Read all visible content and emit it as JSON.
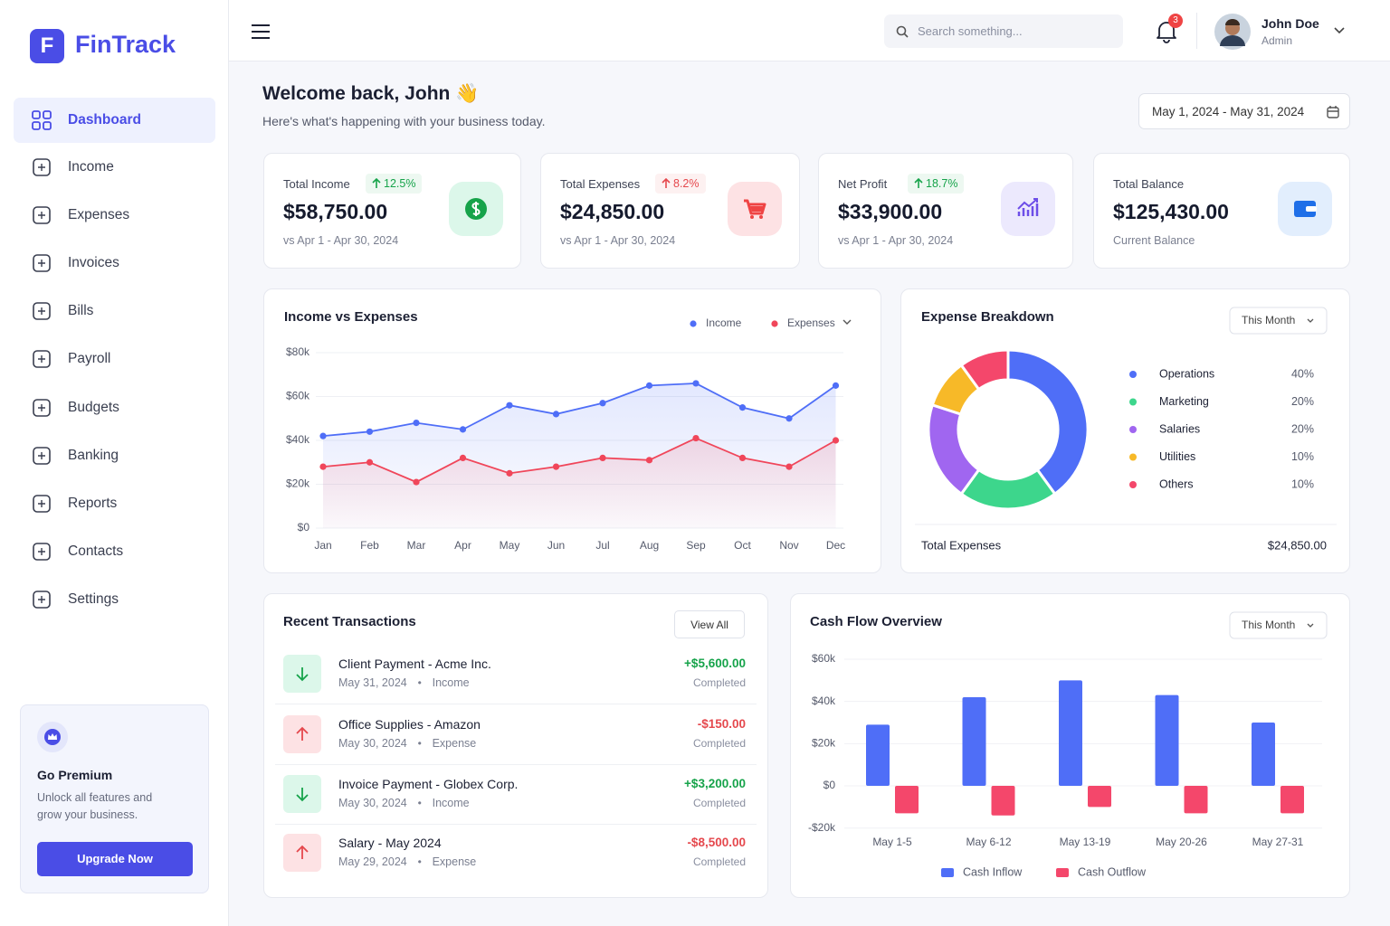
{
  "brand": {
    "logo": "F",
    "name": "FinTrack"
  },
  "nav": [
    "Dashboard",
    "Income",
    "Expenses",
    "Invoices",
    "Bills",
    "Payroll",
    "Budgets",
    "Banking",
    "Reports",
    "Contacts",
    "Settings"
  ],
  "premium": {
    "title": "Go Premium",
    "text": "Unlock all features and grow your business.",
    "button": "Upgrade Now"
  },
  "header": {
    "search_placeholder": "Search something...",
    "notifications": 3,
    "user_name": "John Doe",
    "user_role": "Admin"
  },
  "welcome": {
    "title": "Welcome back, John 👋",
    "subtitle": "Here's what's happening with your business today.",
    "date_range": "May 1, 2024 - May 31, 2024"
  },
  "stats": [
    {
      "label": "Total Income",
      "change": "12.5%",
      "color": "#16a34a",
      "value": "$58,750.00",
      "note": "vs Apr 1 - Apr 30, 2024"
    },
    {
      "label": "Total Expenses",
      "change": "8.2%",
      "color": "#e5484d",
      "value": "$24,850.00",
      "note": "vs Apr 1 - Apr 30, 2024"
    },
    {
      "label": "Net Profit",
      "change": "18.7%",
      "color": "#16a34a",
      "value": "$33,900.00",
      "note": "vs Apr 1 - Apr 30, 2024"
    },
    {
      "label": "Total Balance",
      "value": "$125,430.00",
      "note": "Current Balance"
    }
  ],
  "chart_data": [
    {
      "type": "line",
      "title": "Income vs Expenses",
      "categories": [
        "Jan",
        "Feb",
        "Mar",
        "Apr",
        "May",
        "Jun",
        "Jul",
        "Aug",
        "Sep",
        "Oct",
        "Nov",
        "Dec"
      ],
      "series": [
        {
          "name": "Income",
          "color": "#4f6ef7",
          "values": [
            42000,
            44000,
            48000,
            45000,
            56000,
            52000,
            57000,
            65000,
            66000,
            55000,
            50000,
            65000
          ]
        },
        {
          "name": "Expenses",
          "color": "#f0465a",
          "values": [
            28000,
            30000,
            21000,
            32000,
            25000,
            28000,
            32000,
            31000,
            41000,
            32000,
            28000,
            40000
          ]
        }
      ],
      "ylim": [
        0,
        80000
      ],
      "yticks": [
        {
          "value": 0,
          "label": "$0"
        },
        {
          "value": 20000,
          "label": "$20k"
        },
        {
          "value": 40000,
          "label": "$40k"
        },
        {
          "value": 60000,
          "label": "$60k"
        },
        {
          "value": 80000,
          "label": "$80k"
        }
      ],
      "grid": true,
      "legend": "top-right"
    },
    {
      "type": "pie",
      "title": "Expense Breakdown",
      "period": "This Month",
      "categories": [
        "Operations",
        "Marketing",
        "Salaries",
        "Utilities",
        "Others"
      ],
      "values": [
        40,
        20,
        20,
        10,
        10
      ],
      "value_labels": [
        "40%",
        "20%",
        "20%",
        "10%",
        "10%"
      ],
      "colors": [
        "#4f6ef7",
        "#3dd68c",
        "#a066f0",
        "#f7b928",
        "#f4476b"
      ],
      "total_label": "Total Expenses",
      "total_value": "$24,850.00"
    },
    {
      "type": "bar",
      "title": "Cash Flow Overview",
      "period": "This Month",
      "categories": [
        "May 1-5",
        "May 6-12",
        "May 13-19",
        "May 20-26",
        "May 27-31"
      ],
      "series": [
        {
          "name": "Cash Inflow",
          "color": "#4f6ef7",
          "values": [
            29000,
            42000,
            50000,
            43000,
            30000
          ]
        },
        {
          "name": "Cash Outflow",
          "color": "#f4476b",
          "values": [
            -13000,
            -14000,
            -10000,
            -13000,
            -13000
          ]
        }
      ],
      "ylim": [
        -20000,
        60000
      ],
      "yticks": [
        {
          "value": -20000,
          "label": "-$20k"
        },
        {
          "value": 0,
          "label": "$0"
        },
        {
          "value": 20000,
          "label": "$20k"
        },
        {
          "value": 40000,
          "label": "$40k"
        },
        {
          "value": 60000,
          "label": "$60k"
        }
      ],
      "grid": true,
      "legend": "bottom"
    }
  ],
  "transactions": {
    "title": "Recent Transactions",
    "view_all": "View All",
    "items": [
      {
        "name": "Client Payment - Acme Inc.",
        "date": "May 31, 2024",
        "kind": "Income",
        "amount": "+$5,600.00",
        "status": "Completed"
      },
      {
        "name": "Office Supplies - Amazon",
        "date": "May 30, 2024",
        "kind": "Expense",
        "amount": "-$150.00",
        "status": "Completed"
      },
      {
        "name": "Invoice Payment - Globex Corp.",
        "date": "May 30, 2024",
        "kind": "Income",
        "amount": "+$3,200.00",
        "status": "Completed"
      },
      {
        "name": "Salary - May 2024",
        "date": "May 29, 2024",
        "kind": "Expense",
        "amount": "-$8,500.00",
        "status": "Completed"
      }
    ]
  }
}
